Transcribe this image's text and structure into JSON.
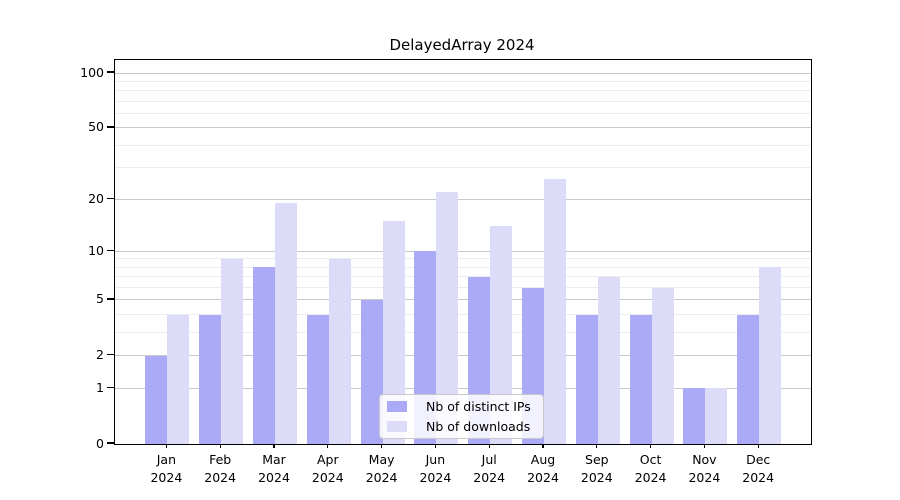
{
  "chart_data": {
    "type": "bar",
    "title": "DelayedArray 2024",
    "categories": [
      "Jan",
      "Feb",
      "Mar",
      "Apr",
      "May",
      "Jun",
      "Jul",
      "Aug",
      "Sep",
      "Oct",
      "Nov",
      "Dec"
    ],
    "year_label": "2024",
    "series": [
      {
        "name": "Nb of distinct IPs",
        "color": "#aaaaf6",
        "values": [
          2,
          4,
          8,
          4,
          5,
          10,
          7,
          6,
          4,
          4,
          1,
          4
        ]
      },
      {
        "name": "Nb of downloads",
        "color": "#dcdcf8",
        "values": [
          4,
          9,
          19,
          9,
          15,
          22,
          14,
          26,
          7,
          6,
          1,
          8
        ]
      }
    ],
    "y_axis": {
      "scale": "log10(1+v)",
      "tick_labels": [
        "0",
        "1",
        "2",
        "5",
        "10",
        "20",
        "50",
        "100"
      ],
      "tick_values": [
        0,
        1,
        2,
        5,
        10,
        20,
        50,
        100
      ],
      "minor_gridline_values": [
        3,
        4,
        6,
        7,
        8,
        9,
        30,
        40,
        60,
        70,
        80,
        90
      ],
      "axis_max_value": 118
    },
    "legend_position": "bottom-center",
    "grid": true,
    "colors": {
      "major_grid": "#c8c8c8",
      "minor_grid": "#ececec",
      "spine": "#000000",
      "background": "#ffffff"
    }
  }
}
